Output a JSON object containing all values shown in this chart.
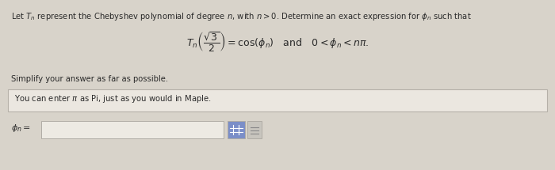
{
  "bg_color": "#d8d3ca",
  "text_color": "#2a2a2a",
  "title_text": "Let $T_n$ represent the Chebyshev polynomial of degree $n$, with $n > 0$. Determine an exact expression for $\\phi_n$ such that",
  "equation": "$T_n\\left(\\dfrac{\\sqrt{3}}{2}\\right) = \\cos(\\phi_n)\\quad\\text{and}\\quad 0 < \\phi_n < n\\pi.$",
  "simplify_text": "Simplify your answer as far as possible.",
  "hint_text": "You can enter $\\pi$ as Pi, just as you would in Maple.",
  "answer_label": "$\\phi_n =$",
  "input_box_color": "#edeae3",
  "input_box_border": "#b0aca5",
  "hint_box_bg": "#ebe7e0",
  "hint_box_border": "#b5b0a8",
  "icon1_color": "#7b8ec8",
  "icon2_color": "#c8c5be",
  "title_fontsize": 7.2,
  "eq_fontsize": 9.0,
  "body_fontsize": 7.2,
  "label_fontsize": 8.0
}
